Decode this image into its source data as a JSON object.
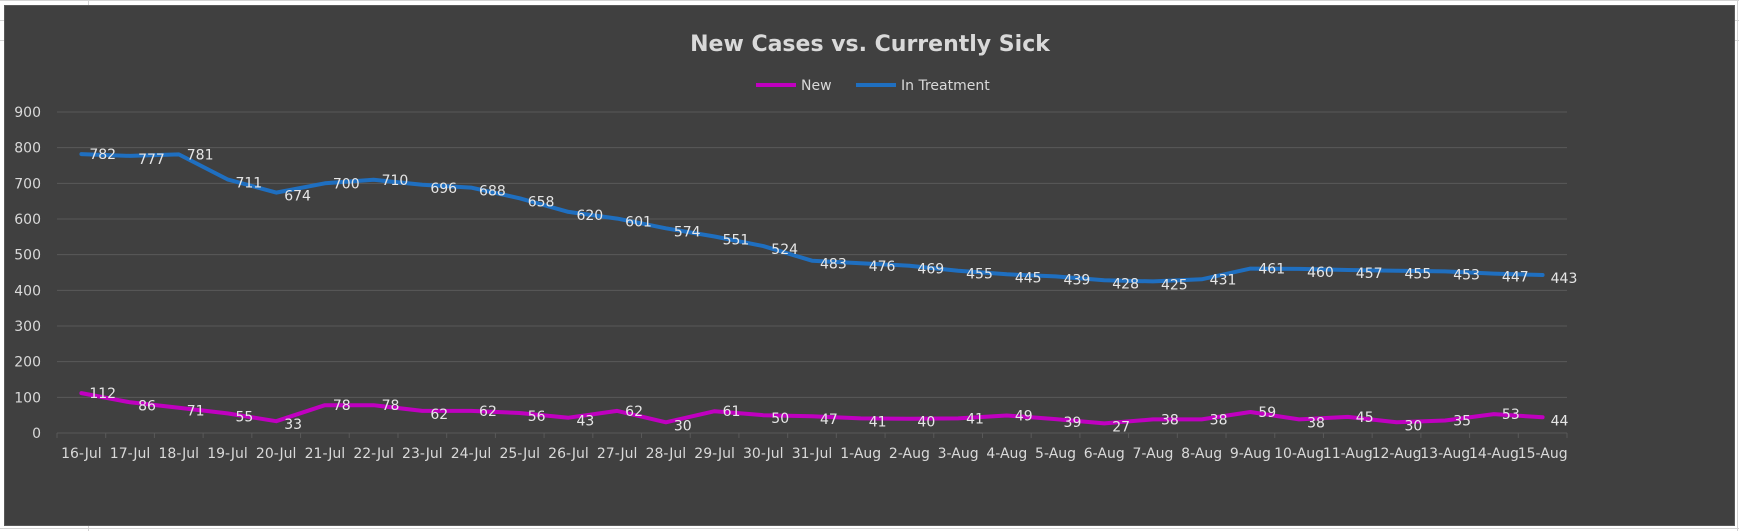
{
  "chart_data": {
    "type": "line",
    "title": "New Cases vs. Currently Sick",
    "legend_position": "top",
    "grid": true,
    "ylim": [
      0,
      900
    ],
    "y_ticks": [
      0,
      100,
      200,
      300,
      400,
      500,
      600,
      700,
      800,
      900
    ],
    "categories": [
      "16-Jul",
      "17-Jul",
      "18-Jul",
      "19-Jul",
      "20-Jul",
      "21-Jul",
      "22-Jul",
      "23-Jul",
      "24-Jul",
      "25-Jul",
      "26-Jul",
      "27-Jul",
      "28-Jul",
      "29-Jul",
      "30-Jul",
      "31-Jul",
      "1-Aug",
      "2-Aug",
      "3-Aug",
      "4-Aug",
      "5-Aug",
      "6-Aug",
      "7-Aug",
      "8-Aug",
      "9-Aug",
      "10-Aug",
      "11-Aug",
      "12-Aug",
      "13-Aug",
      "14-Aug",
      "15-Aug"
    ],
    "series": [
      {
        "name": "New",
        "color": "#c000c0",
        "values": [
          112,
          86,
          71,
          55,
          33,
          78,
          78,
          62,
          62,
          56,
          43,
          62,
          30,
          61,
          50,
          47,
          41,
          40,
          41,
          49,
          39,
          27,
          38,
          38,
          59,
          38,
          45,
          30,
          35,
          53,
          44
        ]
      },
      {
        "name": "In Treatment",
        "color": "#1f6fc0",
        "values": [
          782,
          777,
          781,
          711,
          674,
          700,
          710,
          696,
          688,
          658,
          620,
          601,
          574,
          551,
          524,
          483,
          476,
          469,
          455,
          445,
          439,
          428,
          425,
          431,
          461,
          460,
          457,
          455,
          453,
          447,
          443
        ]
      }
    ]
  },
  "colors": {
    "chart_background": "#404040",
    "gridline": "#595959",
    "text": "#d9d9d9"
  }
}
